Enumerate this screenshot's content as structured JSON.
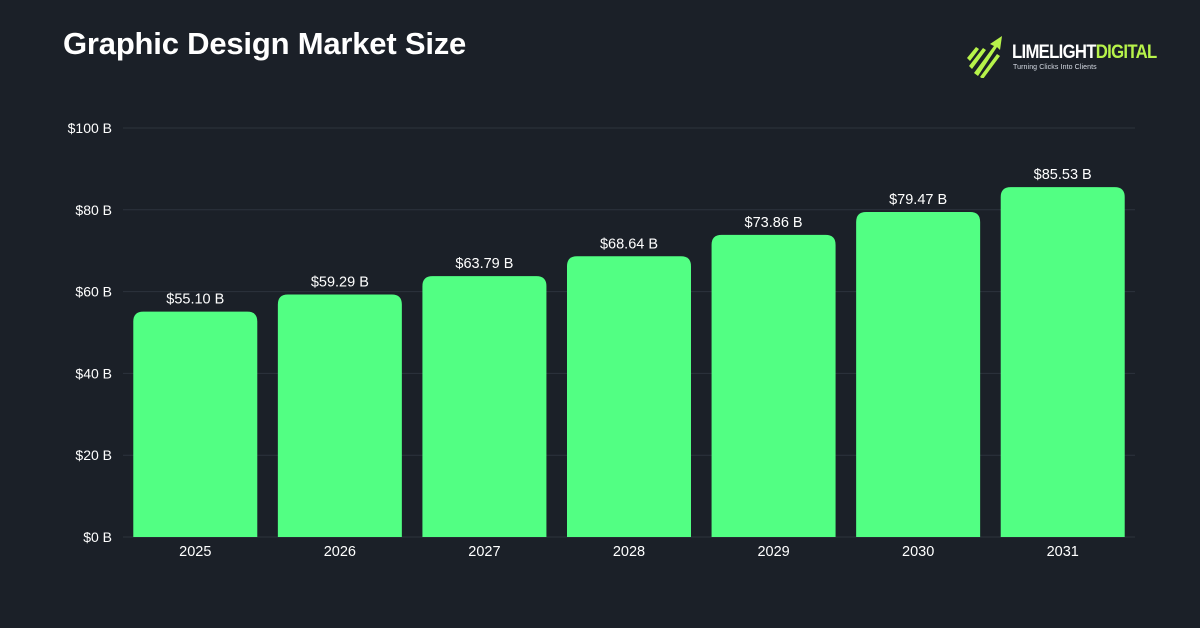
{
  "header": {
    "title": "Graphic Design Market Size"
  },
  "logo": {
    "name_part1": "LIMELIGHT",
    "name_part2": "DIGITAL",
    "tagline": "Turning Clicks Into Clients",
    "icon": "rocket-arrow-icon",
    "accent_color": "#b7f34a"
  },
  "colors": {
    "background": "#1b2028",
    "bar": "#52ff83",
    "grid": "#2c333d",
    "text": "#ffffff"
  },
  "chart_data": {
    "type": "bar",
    "title": "Graphic Design Market Size",
    "xlabel": "",
    "ylabel": "",
    "categories": [
      "2025",
      "2026",
      "2027",
      "2028",
      "2029",
      "2030",
      "2031"
    ],
    "values": [
      55.1,
      59.29,
      63.79,
      68.64,
      73.86,
      79.47,
      85.53
    ],
    "data_labels": [
      "$55.10 B",
      "$59.29 B",
      "$63.79 B",
      "$68.64 B",
      "$73.86 B",
      "$79.47 B",
      "$85.53 B"
    ],
    "ylim": [
      0,
      100
    ],
    "yticks": [
      0,
      20,
      40,
      60,
      80,
      100
    ],
    "ytick_labels": [
      "$0 B",
      "$20 B",
      "$40 B",
      "$60 B",
      "$80 B",
      "$100 B"
    ],
    "grid": true,
    "legend": "none"
  }
}
